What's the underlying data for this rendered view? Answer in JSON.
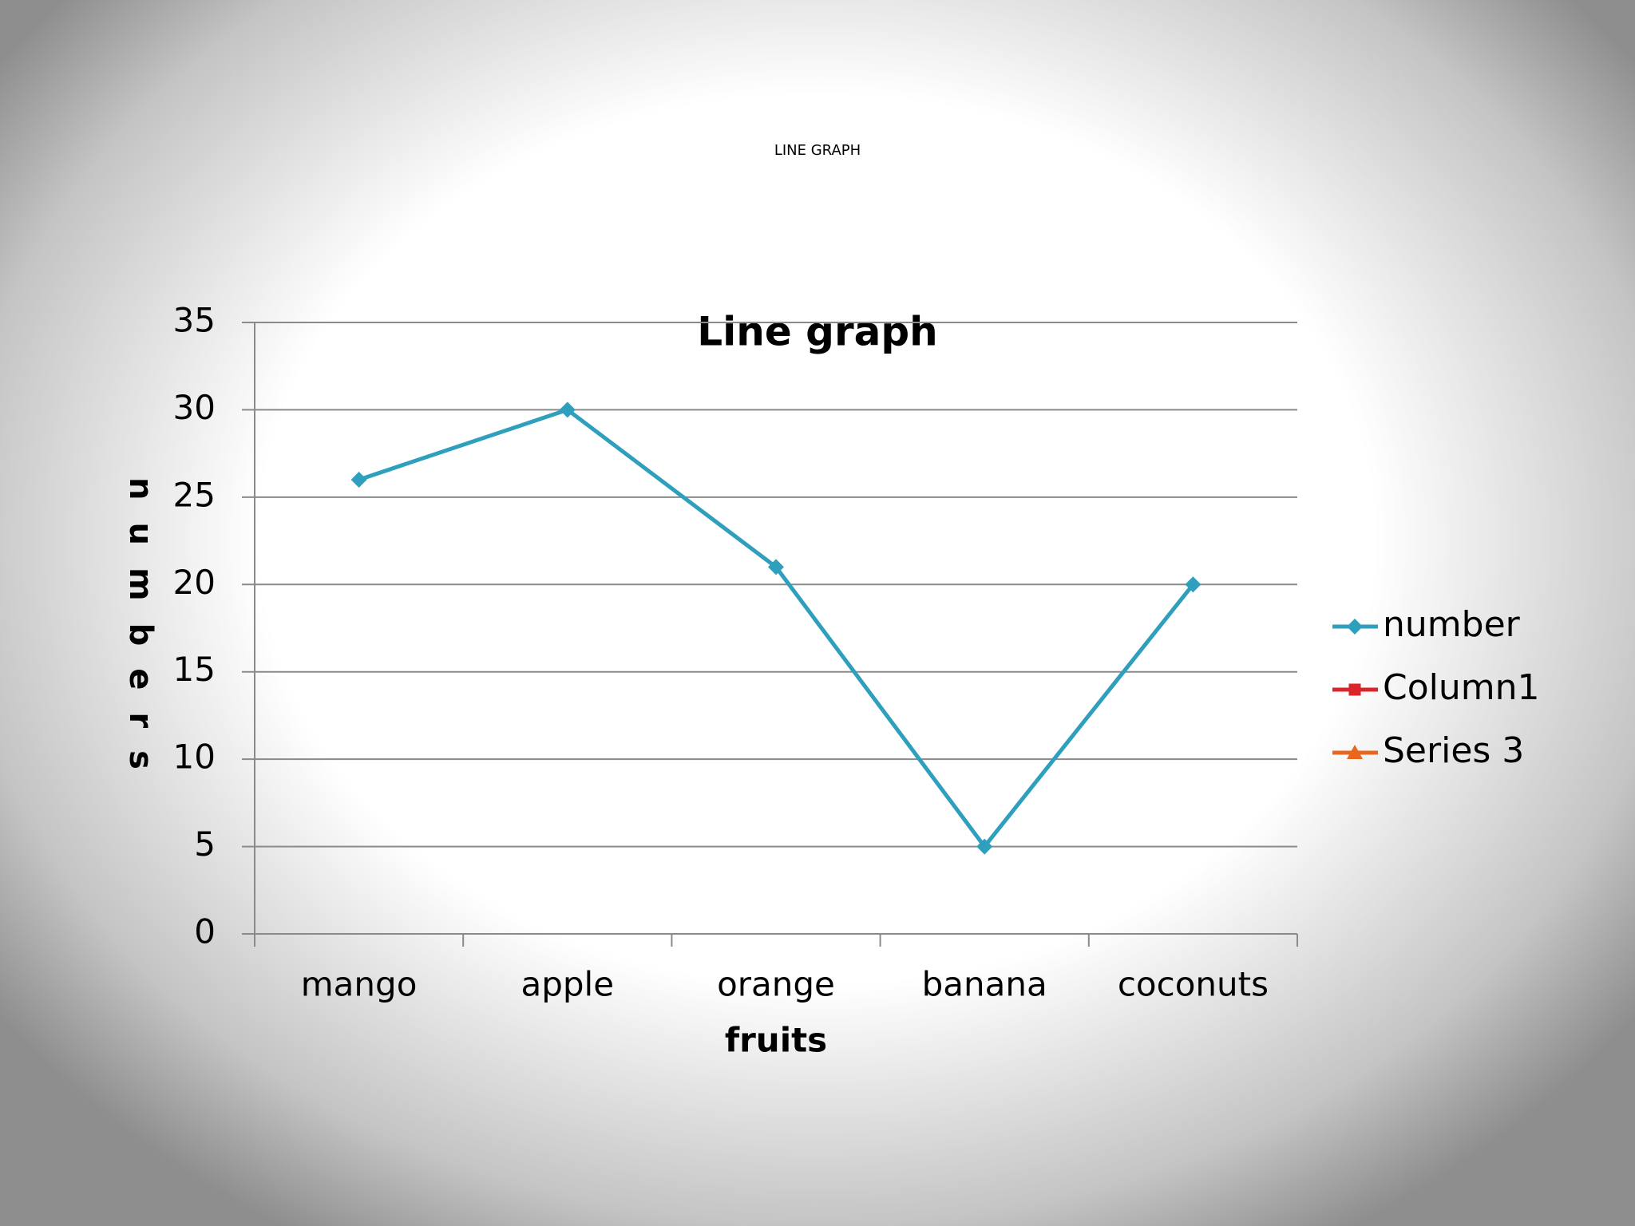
{
  "slide_title": "LINE GRAPH",
  "chart_data": {
    "type": "line",
    "title": "Line graph",
    "x_label": "fruits",
    "y_label": "numbers",
    "categories": [
      "mango",
      "apple",
      "orange",
      "banana",
      "coconuts"
    ],
    "series": [
      {
        "name": "number",
        "color": "#2e9fbc",
        "marker": "diamond",
        "values": [
          26,
          30,
          21,
          5,
          20
        ]
      },
      {
        "name": "Column1",
        "color": "#d9252b",
        "marker": "square",
        "values": [
          null,
          null,
          null,
          null,
          null
        ]
      },
      {
        "name": "Series 3",
        "color": "#e8661e",
        "marker": "triangle",
        "values": [
          null,
          null,
          null,
          null,
          null
        ]
      }
    ],
    "ylim": [
      0,
      35
    ],
    "yticks": [
      0,
      5,
      10,
      15,
      20,
      25,
      30,
      35
    ],
    "grid": true,
    "legend": "right"
  }
}
